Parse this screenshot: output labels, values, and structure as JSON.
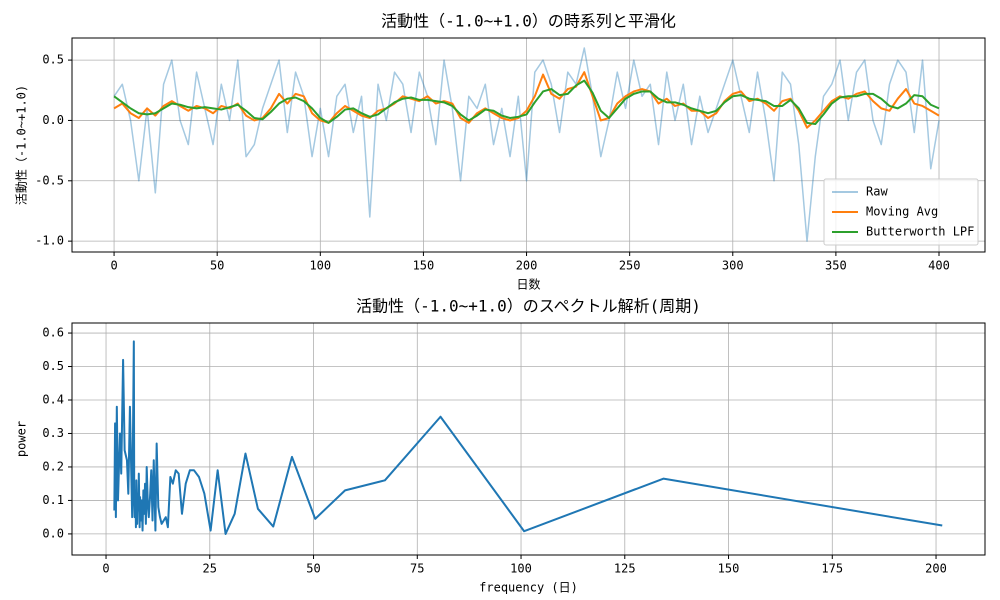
{
  "chart_data": [
    {
      "type": "line",
      "title": "活動性（-1.0~+1.0）の時系列と平滑化",
      "xlabel": "日数",
      "ylabel": "活動性（-1.0~+1.0)",
      "xlim": [
        -20.4,
        422.3
      ],
      "xticks": [
        0,
        50,
        100,
        150,
        200,
        250,
        300,
        350,
        400
      ],
      "ylim": [
        -1.09,
        0.683
      ],
      "yticks": [
        {
          "value": -1,
          "label": "-1.0"
        },
        -0.5,
        {
          "value": 0,
          "label": "0.0"
        },
        0.5
      ],
      "grid": true,
      "legend": "lower right",
      "x": [
        0,
        4,
        8,
        12,
        16,
        20,
        24,
        28,
        32,
        36,
        40,
        44,
        48,
        52,
        56,
        60,
        64,
        68,
        72,
        76,
        80,
        84,
        88,
        92,
        96,
        100,
        104,
        108,
        112,
        116,
        120,
        124,
        128,
        132,
        136,
        140,
        144,
        148,
        152,
        156,
        160,
        164,
        168,
        172,
        176,
        180,
        184,
        188,
        192,
        196,
        200,
        204,
        208,
        212,
        216,
        220,
        224,
        228,
        232,
        236,
        240,
        244,
        248,
        252,
        256,
        260,
        264,
        268,
        272,
        276,
        280,
        284,
        288,
        292,
        296,
        300,
        304,
        308,
        312,
        316,
        320,
        324,
        328,
        332,
        336,
        340,
        344,
        348,
        352,
        356,
        360,
        364,
        368,
        372,
        376,
        380,
        384,
        388,
        392,
        396,
        400
      ],
      "series": [
        {
          "name": "Raw",
          "color": "#1f77b4",
          "opacity": 0.4,
          "values": [
            0.2,
            0.3,
            0.0,
            -0.5,
            0.1,
            -0.6,
            0.3,
            0.5,
            0.0,
            -0.2,
            0.4,
            0.1,
            -0.2,
            0.3,
            0.0,
            0.5,
            -0.3,
            -0.2,
            0.1,
            0.3,
            0.5,
            -0.1,
            0.4,
            0.2,
            -0.3,
            0.1,
            -0.3,
            0.2,
            0.3,
            -0.1,
            0.2,
            -0.8,
            0.3,
            0.0,
            0.4,
            0.3,
            -0.1,
            0.4,
            0.2,
            -0.2,
            0.5,
            0.1,
            -0.5,
            0.2,
            0.1,
            0.3,
            -0.2,
            0.1,
            -0.3,
            0.2,
            -0.5,
            0.4,
            0.5,
            0.3,
            -0.1,
            0.4,
            0.3,
            0.6,
            0.2,
            -0.3,
            0.0,
            0.4,
            0.1,
            0.5,
            0.2,
            0.3,
            -0.2,
            0.4,
            0.0,
            0.3,
            -0.2,
            0.2,
            -0.1,
            0.1,
            0.3,
            0.5,
            0.2,
            -0.1,
            0.4,
            0.0,
            -0.5,
            0.4,
            0.3,
            -0.2,
            -1.0,
            -0.3,
            0.2,
            0.3,
            0.5,
            0.0,
            0.4,
            0.5,
            0.0,
            -0.2,
            0.3,
            0.5,
            0.4,
            -0.1,
            0.5,
            -0.4,
            0.0
          ]
        },
        {
          "name": "Moving Avg",
          "color": "#ff7f0e",
          "opacity": 1,
          "values": [
            0.1,
            0.14,
            0.06,
            0.02,
            0.1,
            0.04,
            0.12,
            0.16,
            0.12,
            0.08,
            0.12,
            0.1,
            0.06,
            0.12,
            0.1,
            0.14,
            0.04,
            0.0,
            0.02,
            0.1,
            0.22,
            0.14,
            0.22,
            0.2,
            0.06,
            0.0,
            -0.02,
            0.06,
            0.12,
            0.08,
            0.04,
            0.02,
            0.08,
            0.1,
            0.14,
            0.2,
            0.18,
            0.16,
            0.2,
            0.14,
            0.16,
            0.14,
            0.02,
            -0.02,
            0.06,
            0.1,
            0.06,
            0.02,
            0.0,
            0.02,
            0.08,
            0.2,
            0.38,
            0.22,
            0.18,
            0.26,
            0.28,
            0.4,
            0.2,
            0.0,
            0.02,
            0.14,
            0.2,
            0.24,
            0.26,
            0.24,
            0.14,
            0.18,
            0.12,
            0.14,
            0.08,
            0.08,
            0.02,
            0.06,
            0.16,
            0.22,
            0.24,
            0.16,
            0.18,
            0.14,
            0.08,
            0.16,
            0.18,
            0.08,
            -0.06,
            0.0,
            0.08,
            0.16,
            0.2,
            0.18,
            0.22,
            0.24,
            0.16,
            0.1,
            0.08,
            0.18,
            0.26,
            0.14,
            0.12,
            0.08,
            0.04
          ]
        },
        {
          "name": "Butterworth LPF",
          "color": "#2ca02c",
          "opacity": 1,
          "values": [
            0.2,
            0.15,
            0.1,
            0.06,
            0.05,
            0.06,
            0.1,
            0.14,
            0.13,
            0.11,
            0.1,
            0.11,
            0.1,
            0.09,
            0.11,
            0.13,
            0.08,
            0.02,
            0.01,
            0.07,
            0.14,
            0.18,
            0.19,
            0.16,
            0.1,
            0.02,
            -0.02,
            0.03,
            0.09,
            0.1,
            0.06,
            0.03,
            0.05,
            0.1,
            0.15,
            0.18,
            0.19,
            0.17,
            0.17,
            0.16,
            0.15,
            0.12,
            0.05,
            0.0,
            0.04,
            0.09,
            0.08,
            0.04,
            0.02,
            0.03,
            0.05,
            0.15,
            0.24,
            0.26,
            0.21,
            0.22,
            0.29,
            0.33,
            0.23,
            0.08,
            0.02,
            0.1,
            0.18,
            0.22,
            0.24,
            0.24,
            0.18,
            0.15,
            0.15,
            0.13,
            0.1,
            0.08,
            0.06,
            0.08,
            0.15,
            0.2,
            0.21,
            0.18,
            0.17,
            0.16,
            0.12,
            0.12,
            0.17,
            0.1,
            -0.02,
            -0.03,
            0.05,
            0.14,
            0.19,
            0.2,
            0.2,
            0.22,
            0.22,
            0.18,
            0.12,
            0.1,
            0.14,
            0.21,
            0.2,
            0.13,
            0.1
          ]
        }
      ]
    },
    {
      "type": "line",
      "title": "活動性（-1.0~+1.0）のスペクトル解析(周期)",
      "xlabel": "frequency (日)",
      "ylabel": "power",
      "xlim": [
        -8.2,
        211.8
      ],
      "xticks": [
        0,
        25,
        50,
        75,
        100,
        125,
        150,
        175,
        200
      ],
      "ylim": [
        -0.063,
        0.63
      ],
      "yticks": [
        {
          "value": 0,
          "label": "0.0"
        },
        0.1,
        0.2,
        0.3,
        0.4,
        0.5,
        0.6
      ],
      "grid": true,
      "x": [
        201.5,
        134.3,
        100.75,
        80.6,
        67.2,
        57.6,
        50.4,
        44.8,
        40.3,
        36.6,
        33.6,
        31.0,
        28.8,
        26.9,
        25.2,
        23.7,
        22.4,
        21.2,
        20.2,
        19.2,
        18.3,
        17.5,
        16.8,
        16.1,
        15.5,
        14.9,
        14.4,
        13.9,
        13.4,
        13.0,
        12.6,
        12.2,
        11.9,
        11.5,
        11.2,
        10.9,
        10.6,
        10.3,
        10.1,
        9.8,
        9.6,
        9.4,
        9.2,
        9.0,
        8.8,
        8.6,
        8.4,
        8.2,
        8.1,
        7.9,
        7.8,
        7.6,
        7.5,
        7.3,
        7.2,
        7.1,
        6.9,
        6.8,
        6.7,
        6.5,
        6.3,
        5.76,
        5.37,
        5.04,
        4.48,
        4.11,
        3.66,
        3.36,
        2.88,
        2.6,
        2.37,
        2.18,
        2.0
      ],
      "series": [
        {
          "color": "#1f77b4",
          "opacity": 1,
          "values": [
            0.025,
            0.165,
            0.008,
            0.35,
            0.16,
            0.13,
            0.045,
            0.23,
            0.022,
            0.075,
            0.24,
            0.06,
            0.0,
            0.19,
            0.01,
            0.12,
            0.17,
            0.19,
            0.19,
            0.15,
            0.06,
            0.18,
            0.19,
            0.15,
            0.17,
            0.02,
            0.05,
            0.04,
            0.03,
            0.05,
            0.08,
            0.27,
            0.01,
            0.22,
            0.04,
            0.19,
            0.11,
            0.05,
            0.08,
            0.2,
            0.03,
            0.15,
            0.06,
            0.13,
            0.01,
            0.1,
            0.04,
            0.11,
            0.02,
            0.18,
            0.07,
            0.12,
            0.03,
            0.16,
            0.02,
            0.13,
            0.05,
            0.09,
            0.575,
            0.3,
            0.05,
            0.38,
            0.12,
            0.22,
            0.25,
            0.52,
            0.18,
            0.3,
            0.1,
            0.38,
            0.05,
            0.33,
            0.07
          ]
        }
      ]
    }
  ]
}
